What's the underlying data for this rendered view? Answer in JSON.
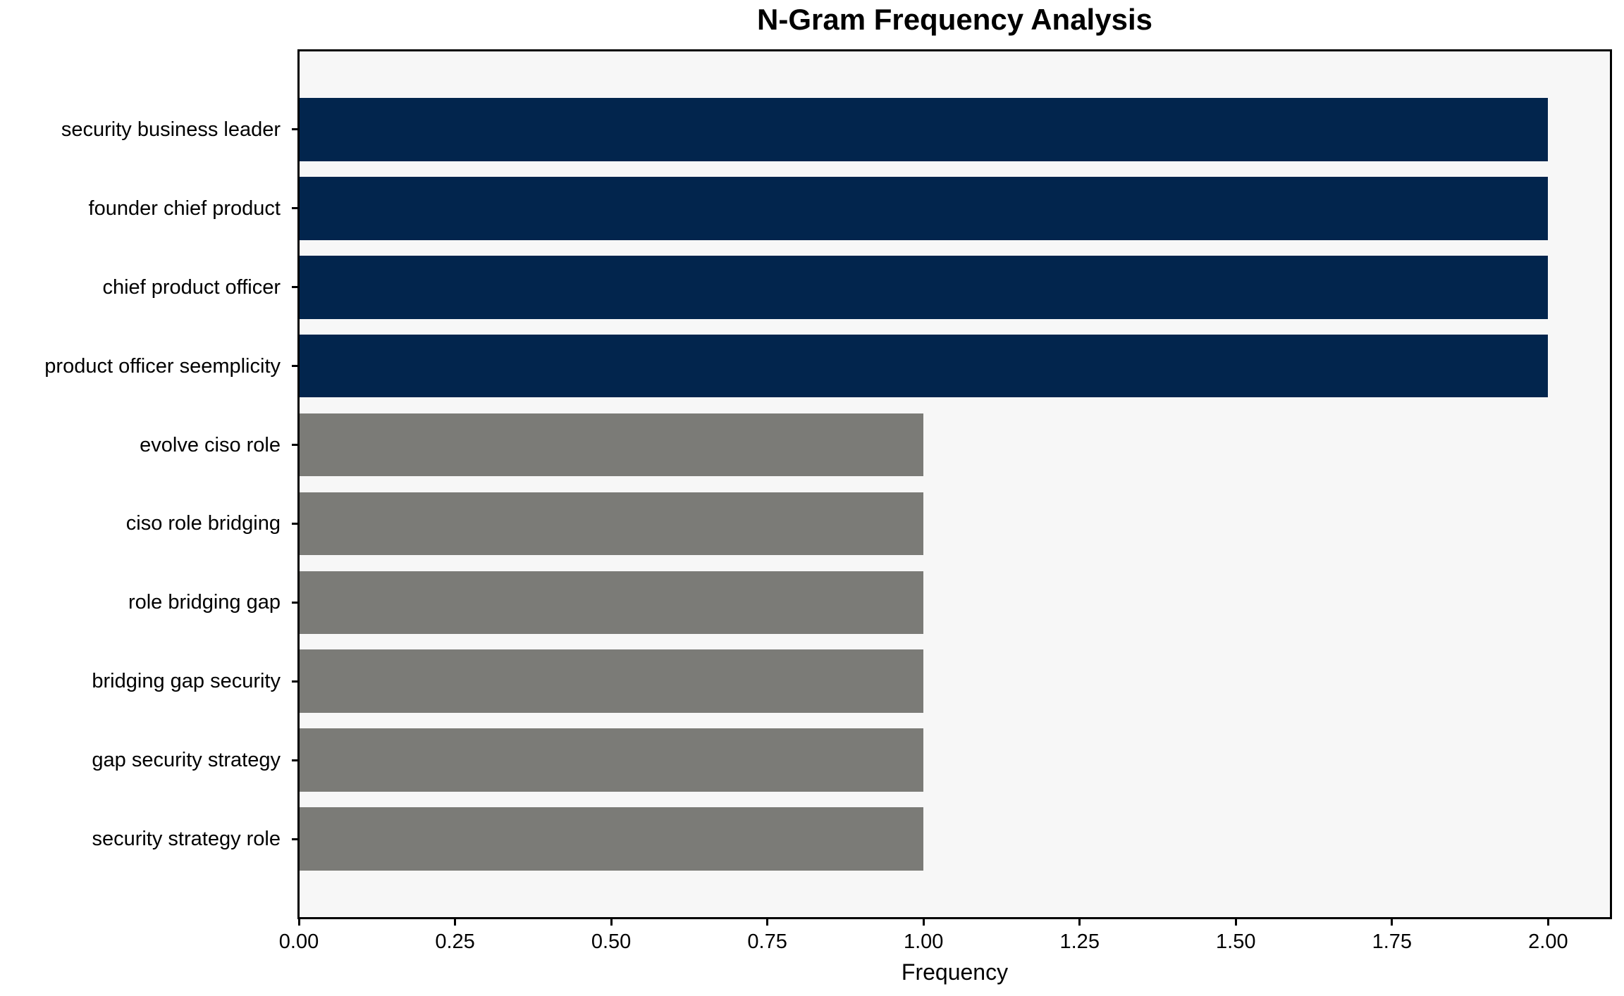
{
  "chart_data": {
    "type": "bar",
    "orientation": "horizontal",
    "title": "N-Gram Frequency Analysis",
    "xlabel": "Frequency",
    "ylabel": "",
    "categories": [
      "security business leader",
      "founder chief product",
      "chief product officer",
      "product officer seemplicity",
      "evolve ciso role",
      "ciso role bridging",
      "role bridging gap",
      "bridging gap security",
      "gap security strategy",
      "security strategy role"
    ],
    "values": [
      2,
      2,
      2,
      2,
      1,
      1,
      1,
      1,
      1,
      1
    ],
    "bar_colors": [
      "#02254d",
      "#02254d",
      "#02254d",
      "#02254d",
      "#7b7b77",
      "#7b7b77",
      "#7b7b77",
      "#7b7b77",
      "#7b7b77",
      "#7b7b77"
    ],
    "x_tick_values": [
      0,
      0.25,
      0.5,
      0.75,
      1.0,
      1.25,
      1.5,
      1.75,
      2.0
    ],
    "x_tick_labels": [
      "0.00",
      "0.25",
      "0.50",
      "0.75",
      "1.00",
      "1.25",
      "1.50",
      "1.75",
      "2.00"
    ],
    "xlim": [
      0,
      2.1
    ],
    "grid": false,
    "legend_position": "none"
  },
  "colors": {
    "bar_high": "#02254d",
    "bar_low": "#7b7b77",
    "plot_background": "#f7f7f7",
    "figure_background": "#ffffff",
    "spine": "#000000",
    "text": "#000000"
  }
}
